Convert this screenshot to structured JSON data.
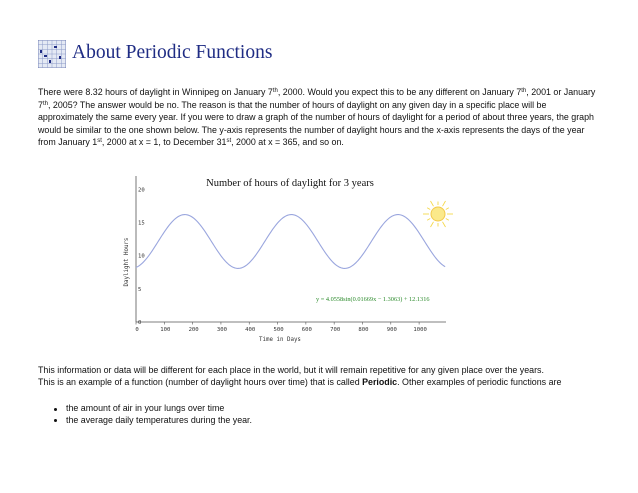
{
  "page": {
    "title": "About Periodic Functions",
    "intro": {
      "s1a": "There were 8.32 hours of daylight in Winnipeg on January 7",
      "s1b": ", 2000. Would you expect this to be any different on January 7",
      "s1c": ", 2001 or January 7",
      "s1d": ", 2005? The answer would be no. The reason is that the number of hours of daylight on any given day in a specific place will be approximately the same every year. If you were to draw a graph of the number of hours of daylight for a period of about three years, the graph would be similar to the one shown below. The y-axis represents the number of daylight hours and the x-axis represents the days of the year from January 1",
      "s1e": ", 2000 at x = 1, to December 31",
      "s1f": ", 2000 at x = 365, and so on.",
      "th": "th",
      "st": "st"
    },
    "para2": {
      "line1": "This information or data will be different for each place in the world, but it will remain repetitive for any given place over the years.",
      "line2a": "This is an example of a function (number of daylight hours over time) that is called ",
      "line2b": "Periodic",
      "line2c": ". Other examples of periodic functions are"
    },
    "examples": [
      "the amount of air in your lungs over time",
      "the average daily temperatures during the year."
    ]
  },
  "chart_data": {
    "type": "line",
    "title": "Number of hours of daylight for 3 years",
    "xlabel": "Time in Days",
    "ylabel": "Daylight Hours",
    "xlim": [
      0,
      1095
    ],
    "ylim": [
      0,
      22
    ],
    "xticks": [
      0,
      100,
      200,
      300,
      400,
      500,
      600,
      700,
      800,
      900,
      1000
    ],
    "yticks": [
      0,
      5,
      10,
      15,
      20
    ],
    "equation": "y = 4.0558sin(0.01669x − 1.3063) + 12.1316",
    "function": {
      "amplitude": 4.0558,
      "frequency": 0.01669,
      "phase": -1.3063,
      "offset": 12.1316
    },
    "grid": false,
    "line_color": "#9aa6de",
    "equation_color": "#2a8a2a",
    "sun_color": "#f5d84a"
  }
}
